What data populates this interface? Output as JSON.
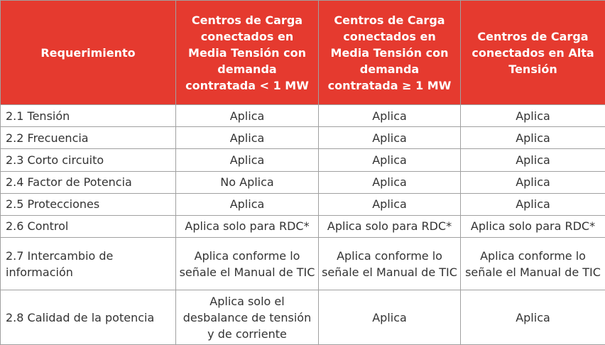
{
  "table": {
    "header": [
      "Requerimiento",
      "Centros de Carga conectados en Media Tensión con demanda contratada < 1 MW",
      "Centros de Carga conectados en Media Tensión con demanda contratada ≥ 1 MW",
      "Centros de Carga conectados en Alta Tensión"
    ],
    "rows": [
      [
        "2.1 Tensión",
        "Aplica",
        "Aplica",
        "Aplica"
      ],
      [
        "2.2 Frecuencia",
        "Aplica",
        "Aplica",
        "Aplica"
      ],
      [
        "2.3 Corto circuito",
        "Aplica",
        "Aplica",
        "Aplica"
      ],
      [
        "2.4 Factor de Potencia",
        "No Aplica",
        "Aplica",
        "Aplica"
      ],
      [
        "2.5 Protecciones",
        "Aplica",
        "Aplica",
        "Aplica"
      ],
      [
        "2.6 Control",
        "Aplica solo para RDC*",
        "Aplica solo para RDC*",
        "Aplica solo para RDC*"
      ],
      [
        "2.7 Intercambio de información",
        "Aplica conforme lo señale el Manual de TIC",
        "Aplica conforme lo señale el Manual de TIC",
        "Aplica conforme lo señale el Manual de TIC"
      ],
      [
        "2.8 Calidad de la potencia",
        "Aplica solo el desbalance de tensión y de corriente",
        "Aplica",
        "Aplica"
      ]
    ]
  }
}
